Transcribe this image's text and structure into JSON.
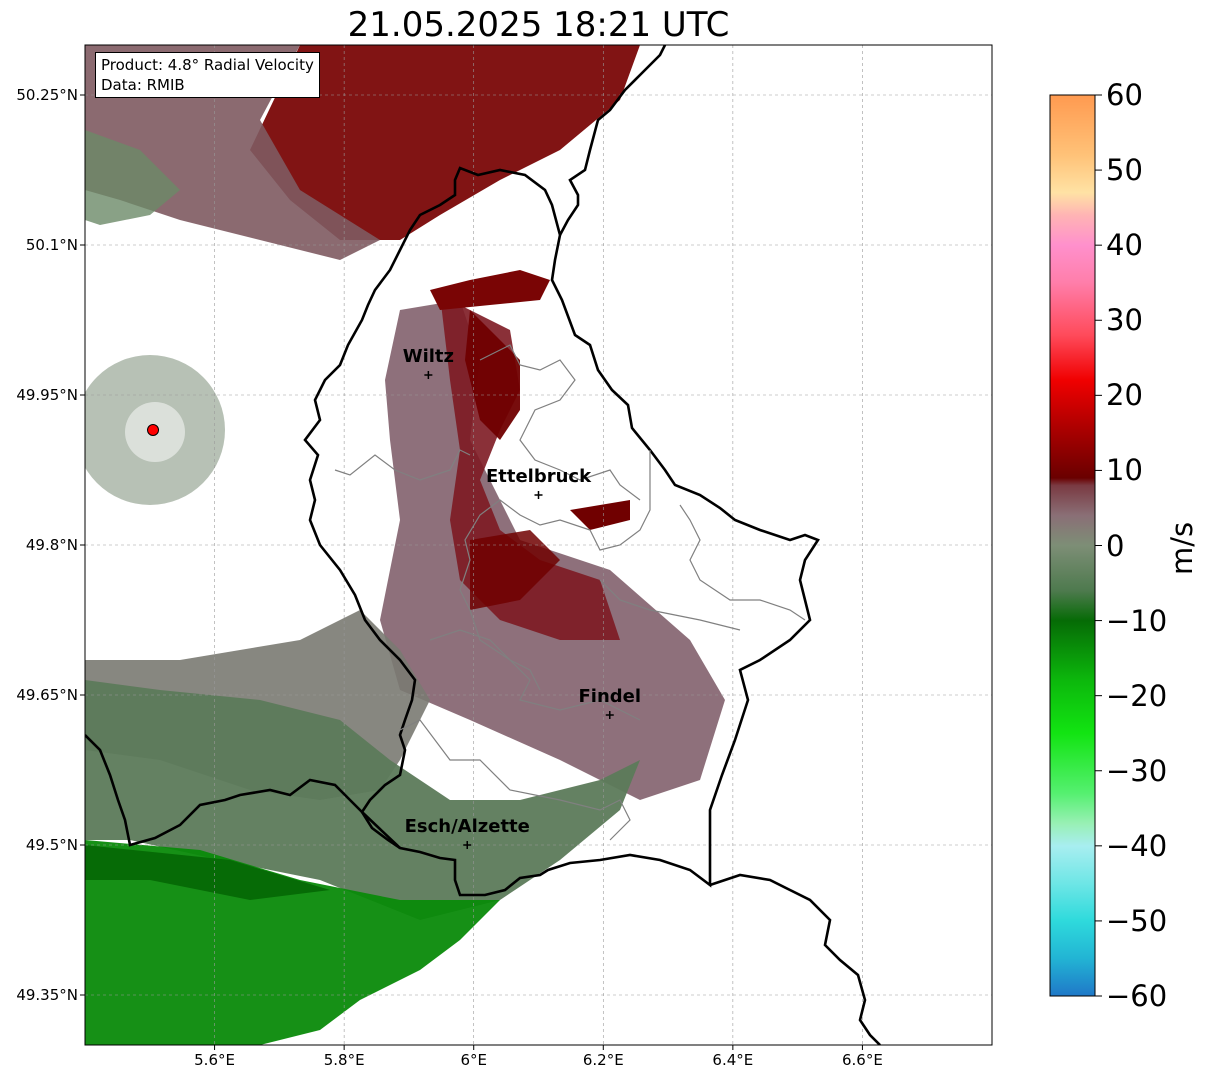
{
  "title": "21.05.2025 18:21 UTC",
  "info_box": {
    "product": "Product: 4.8° Radial Velocity",
    "data": "Data: RMIB"
  },
  "axes": {
    "lat_ticks": [
      "50.25°N",
      "50.1°N",
      "49.95°N",
      "49.8°N",
      "49.65°N",
      "49.5°N",
      "49.35°N"
    ],
    "lon_ticks": [
      "5.6°E",
      "5.8°E",
      "6°E",
      "6.2°E",
      "6.4°E",
      "6.6°E"
    ],
    "lon_range": [
      5.4,
      6.8
    ],
    "lat_range": [
      49.3,
      50.3
    ],
    "grid": true
  },
  "cities": [
    {
      "name": "Wiltz",
      "lon": 5.93,
      "lat": 49.97
    },
    {
      "name": "Ettelbruck",
      "lon": 6.1,
      "lat": 49.85
    },
    {
      "name": "Findel",
      "lon": 6.21,
      "lat": 49.63
    },
    {
      "name": "Esch/Alzette",
      "lon": 5.99,
      "lat": 49.5
    }
  ],
  "radar_site": {
    "lon": 5.505,
    "lat": 49.915,
    "color": "#ff0000"
  },
  "colorbar": {
    "label": "m/s",
    "range": [
      -60,
      60
    ],
    "tick_labels": [
      "60",
      "50",
      "40",
      "30",
      "20",
      "10",
      "0",
      "−10",
      "−20",
      "−30",
      "−40",
      "−50",
      "−60"
    ],
    "stops": [
      {
        "v": -60,
        "color": "#1f78c8"
      },
      {
        "v": -55,
        "color": "#22b4d4"
      },
      {
        "v": -50,
        "color": "#2edadc"
      },
      {
        "v": -45,
        "color": "#6ee6e6"
      },
      {
        "v": -40,
        "color": "#a8eef0"
      },
      {
        "v": -37,
        "color": "#98f0b4"
      },
      {
        "v": -33,
        "color": "#55f070"
      },
      {
        "v": -25,
        "color": "#12e412"
      },
      {
        "v": -18,
        "color": "#0cb80c"
      },
      {
        "v": -10,
        "color": "#066b06"
      },
      {
        "v": -6,
        "color": "#4e7a4e"
      },
      {
        "v": 0,
        "color": "#7d8e76"
      },
      {
        "v": 4,
        "color": "#8a6f76"
      },
      {
        "v": 8,
        "color": "#7a3a42"
      },
      {
        "v": 9,
        "color": "#6a0000"
      },
      {
        "v": 16,
        "color": "#b00000"
      },
      {
        "v": 22,
        "color": "#f00000"
      },
      {
        "v": 28,
        "color": "#ff4a5a"
      },
      {
        "v": 35,
        "color": "#ff7eaa"
      },
      {
        "v": 40,
        "color": "#ff90cc"
      },
      {
        "v": 44,
        "color": "#ffb4b4"
      },
      {
        "v": 47,
        "color": "#ffe2a4"
      },
      {
        "v": 52,
        "color": "#ffc278"
      },
      {
        "v": 60,
        "color": "#ff9a50"
      }
    ]
  }
}
